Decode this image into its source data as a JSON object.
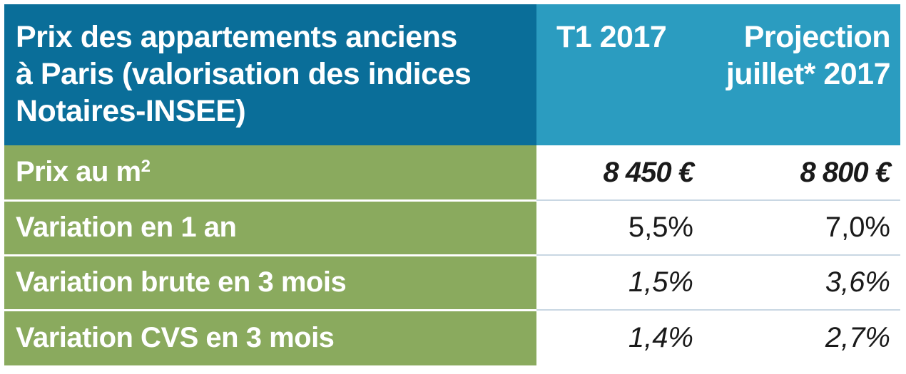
{
  "table": {
    "header": {
      "label_line1": "Prix des appartements anciens",
      "label_line2": "à Paris (valorisation des indices",
      "label_line3": "Notaires-INSEE)",
      "col_t1": "T1 2017",
      "col_proj_line1": "Projection",
      "col_proj_line2": "juillet* 2017"
    },
    "rows": [
      {
        "label": "Prix au m",
        "label_sup": "2",
        "t1": "8 450 €",
        "proj": "8 800 €"
      },
      {
        "label": "Variation en 1 an",
        "t1": "5,5%",
        "proj": "7,0%"
      },
      {
        "label": "Variation brute en 3 mois",
        "t1": "1,5%",
        "proj": "3,6%"
      },
      {
        "label": "Variation CVS en 3 mois",
        "t1": "1,4%",
        "proj": "2,7%"
      }
    ]
  },
  "colors": {
    "header_dark": "#0a6e99",
    "header_light": "#2b9cc0",
    "row_label_bg": "#8aaa5e"
  }
}
